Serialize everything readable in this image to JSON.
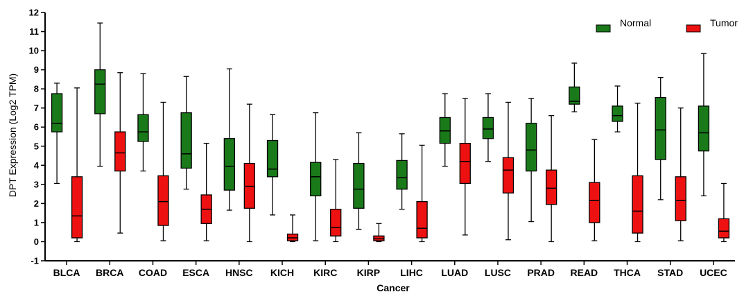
{
  "chart_data": {
    "type": "boxplot",
    "title": "",
    "xlabel": "Cancer",
    "ylabel": "DPT Expression (Log2 TPM)",
    "ylim": [
      -1,
      12
    ],
    "yticks": [
      -1,
      0,
      1,
      2,
      3,
      4,
      5,
      6,
      7,
      8,
      9,
      10,
      11,
      12
    ],
    "grid": false,
    "legend_position": "top-right",
    "categories": [
      "BLCA",
      "BRCA",
      "COAD",
      "ESCA",
      "HNSC",
      "KICH",
      "KIRC",
      "KIRP",
      "LIHC",
      "LUAD",
      "LUSC",
      "PRAD",
      "READ",
      "THCA",
      "STAD",
      "UCEC"
    ],
    "series": [
      {
        "name": "Normal",
        "color": "#1a7a1a",
        "boxes": [
          {
            "min": 3.05,
            "q1": 5.75,
            "median": 6.2,
            "q3": 7.75,
            "max": 8.3
          },
          {
            "min": 3.95,
            "q1": 6.7,
            "median": 8.25,
            "q3": 9.0,
            "max": 11.45
          },
          {
            "min": 3.7,
            "q1": 5.25,
            "median": 5.75,
            "q3": 6.65,
            "max": 8.8
          },
          {
            "min": 2.75,
            "q1": 3.85,
            "median": 4.6,
            "q3": 6.75,
            "max": 8.65
          },
          {
            "min": 1.65,
            "q1": 2.7,
            "median": 3.95,
            "q3": 5.4,
            "max": 9.05
          },
          {
            "min": 1.4,
            "q1": 3.4,
            "median": 3.8,
            "q3": 5.3,
            "max": 6.65
          },
          {
            "min": 0.05,
            "q1": 2.4,
            "median": 3.4,
            "q3": 4.15,
            "max": 6.75
          },
          {
            "min": 0.65,
            "q1": 1.75,
            "median": 2.75,
            "q3": 4.1,
            "max": 5.7
          },
          {
            "min": 1.7,
            "q1": 2.75,
            "median": 3.35,
            "q3": 4.25,
            "max": 5.65
          },
          {
            "min": 3.95,
            "q1": 5.15,
            "median": 5.8,
            "q3": 6.5,
            "max": 7.75
          },
          {
            "min": 4.2,
            "q1": 5.4,
            "median": 5.9,
            "q3": 6.5,
            "max": 7.75
          },
          {
            "min": 1.05,
            "q1": 3.7,
            "median": 4.8,
            "q3": 6.2,
            "max": 7.5
          },
          {
            "min": 6.8,
            "q1": 7.2,
            "median": 7.35,
            "q3": 8.1,
            "max": 9.35
          },
          {
            "min": 5.75,
            "q1": 6.3,
            "median": 6.6,
            "q3": 7.1,
            "max": 8.15
          },
          {
            "min": 2.2,
            "q1": 4.3,
            "median": 5.85,
            "q3": 7.55,
            "max": 8.6
          },
          {
            "min": 2.4,
            "q1": 4.75,
            "median": 5.7,
            "q3": 7.1,
            "max": 9.85
          }
        ]
      },
      {
        "name": "Tumor",
        "color": "#ee1111",
        "boxes": [
          {
            "min": 0.0,
            "q1": 0.2,
            "median": 1.35,
            "q3": 3.4,
            "max": 8.05
          },
          {
            "min": 0.45,
            "q1": 3.7,
            "median": 4.65,
            "q3": 5.75,
            "max": 8.85
          },
          {
            "min": 0.05,
            "q1": 0.85,
            "median": 2.1,
            "q3": 3.45,
            "max": 7.3
          },
          {
            "min": 0.05,
            "q1": 0.95,
            "median": 1.7,
            "q3": 2.45,
            "max": 5.15
          },
          {
            "min": 0.0,
            "q1": 1.75,
            "median": 2.9,
            "q3": 4.1,
            "max": 7.2
          },
          {
            "min": 0.0,
            "q1": 0.05,
            "median": 0.2,
            "q3": 0.4,
            "max": 1.4
          },
          {
            "min": 0.0,
            "q1": 0.3,
            "median": 0.75,
            "q3": 1.7,
            "max": 4.3
          },
          {
            "min": 0.0,
            "q1": 0.05,
            "median": 0.15,
            "q3": 0.3,
            "max": 0.95
          },
          {
            "min": 0.0,
            "q1": 0.2,
            "median": 0.7,
            "q3": 2.1,
            "max": 5.05
          },
          {
            "min": 0.35,
            "q1": 3.05,
            "median": 4.2,
            "q3": 5.15,
            "max": 7.5
          },
          {
            "min": 0.1,
            "q1": 2.55,
            "median": 3.75,
            "q3": 4.4,
            "max": 7.3
          },
          {
            "min": 0.0,
            "q1": 1.95,
            "median": 2.8,
            "q3": 3.75,
            "max": 6.6
          },
          {
            "min": 0.05,
            "q1": 1.0,
            "median": 2.15,
            "q3": 3.1,
            "max": 5.35
          },
          {
            "min": 0.0,
            "q1": 0.45,
            "median": 1.6,
            "q3": 3.45,
            "max": 7.25
          },
          {
            "min": 0.05,
            "q1": 1.1,
            "median": 2.15,
            "q3": 3.4,
            "max": 7.0
          },
          {
            "min": 0.0,
            "q1": 0.2,
            "median": 0.55,
            "q3": 1.2,
            "max": 3.05
          }
        ]
      }
    ]
  }
}
